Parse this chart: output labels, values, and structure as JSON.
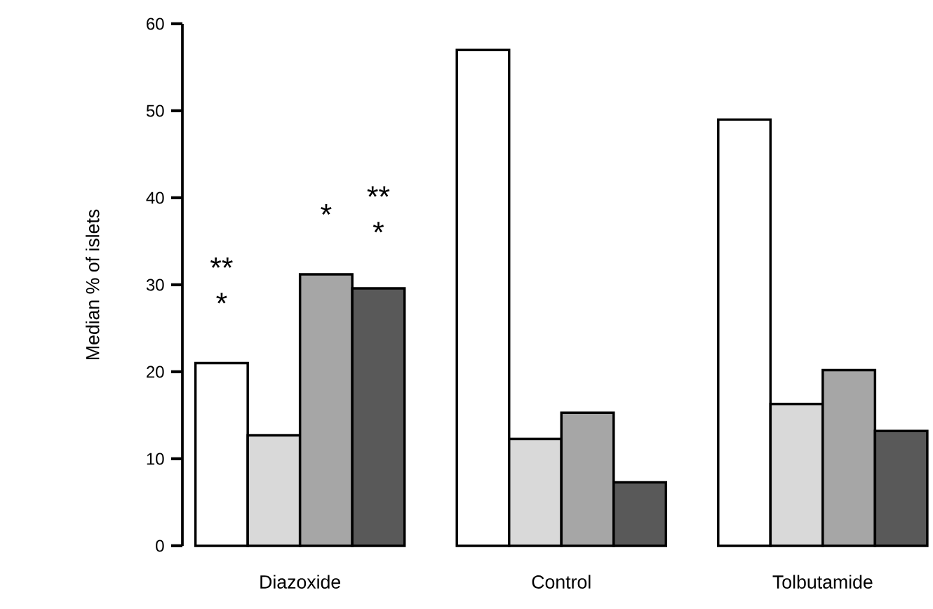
{
  "chart_data": {
    "type": "bar",
    "categories": [
      "Diazoxide",
      "Control",
      "Tolbutamide"
    ],
    "series": [
      {
        "color": "#ffffff",
        "values": [
          21,
          57,
          49
        ]
      },
      {
        "color": "#d9d9d9",
        "values": [
          12.7,
          12.3,
          16.3
        ]
      },
      {
        "color": "#a6a6a6",
        "values": [
          31.2,
          15.3,
          20.2
        ]
      },
      {
        "color": "#595959",
        "values": [
          29.6,
          7.3,
          13.2
        ]
      }
    ],
    "ylabel": "Median % of islets",
    "ylim": [
      0,
      60
    ],
    "yticks": [
      0,
      10,
      20,
      30,
      40,
      50,
      60
    ],
    "annotations": [
      "**",
      "*",
      "*",
      "**",
      "*"
    ],
    "grid": false
  }
}
